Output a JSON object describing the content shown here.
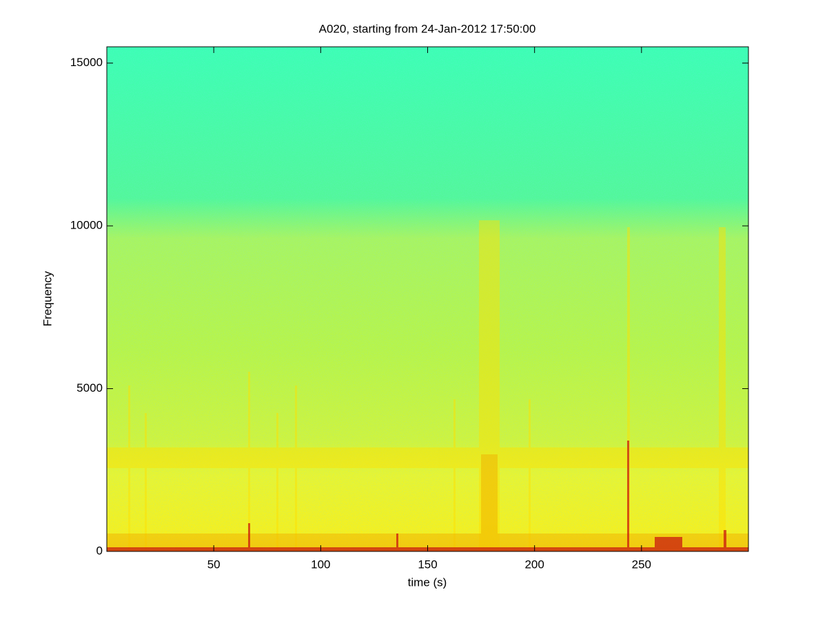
{
  "chart_data": {
    "type": "spectrogram",
    "title": "A020, starting from 24-Jan-2012 17:50:00",
    "x_label": "time (s)",
    "y_label": "Frequency",
    "xlim": [
      0,
      300
    ],
    "xticks": [
      50,
      100,
      150,
      200,
      250
    ],
    "ylim": [
      0,
      15500
    ],
    "yticks": [
      0,
      5000,
      10000,
      15000
    ]
  }
}
